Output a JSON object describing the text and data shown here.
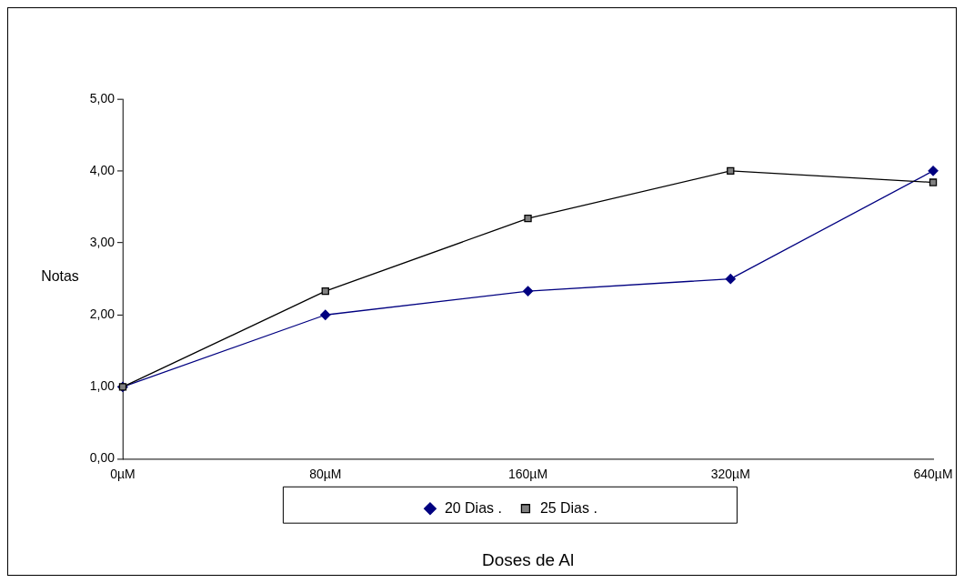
{
  "chart_data": {
    "type": "line",
    "xlabel": "Doses de Al",
    "ylabel": "Notas",
    "categories": [
      "0µM",
      "80µM",
      "160µM",
      "320µM",
      "640µM"
    ],
    "series": [
      {
        "name": "20 Dias .",
        "color": "#000080",
        "marker": "diamond",
        "values": [
          1,
          2,
          2.33,
          2.5,
          4
        ]
      },
      {
        "name": "25 Dias .",
        "color": "#000000",
        "marker": "square",
        "values": [
          1,
          2.33,
          3.34,
          4,
          3.84
        ]
      }
    ],
    "ylim": [
      0,
      5
    ],
    "yticks": [
      {
        "value": 0,
        "label": "0,00"
      },
      {
        "value": 1,
        "label": "1,00"
      },
      {
        "value": 2,
        "label": "2,00"
      },
      {
        "value": 3,
        "label": "3,00"
      },
      {
        "value": 4,
        "label": "4,00"
      },
      {
        "value": 5,
        "label": "5,00"
      }
    ],
    "grid": false,
    "legend": "bottom",
    "line_style": "solid"
  }
}
